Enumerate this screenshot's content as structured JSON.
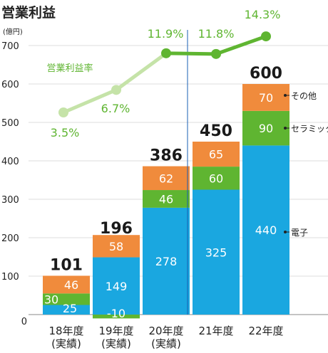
{
  "chart_data": {
    "type": "bar",
    "title": "営業利益",
    "ylabel": "(億円)",
    "ylim": [
      0,
      700
    ],
    "yticks": [
      0,
      100,
      200,
      300,
      400,
      500,
      600,
      700
    ],
    "categories": [
      [
        "18年度",
        "(実績)"
      ],
      [
        "19年度",
        "(実績)"
      ],
      [
        "20年度",
        "(実績)"
      ],
      [
        "21年度"
      ],
      [
        "22年度"
      ]
    ],
    "series": [
      {
        "name": "電子",
        "color": "#1aa7e0",
        "values": [
          25,
          149,
          278,
          325,
          440
        ]
      },
      {
        "name": "セラミック",
        "color": "#5fb531",
        "values": [
          30,
          -10,
          46,
          60,
          90
        ]
      },
      {
        "name": "その他",
        "color": "#f08b3c",
        "values": [
          46,
          58,
          62,
          65,
          70
        ]
      }
    ],
    "totals": [
      101,
      196,
      386,
      450,
      600
    ],
    "margin_series": {
      "name": "営業利益率",
      "values": [
        3.5,
        6.7,
        11.9,
        11.8,
        14.3
      ],
      "labels": [
        "3.5%",
        "6.7%",
        "11.9%",
        "11.8%",
        "14.3%"
      ],
      "actual_color": "#c5e3a8",
      "plan_color": "#5fb531"
    },
    "divider_color": "#1a5fb4",
    "grid": true
  }
}
